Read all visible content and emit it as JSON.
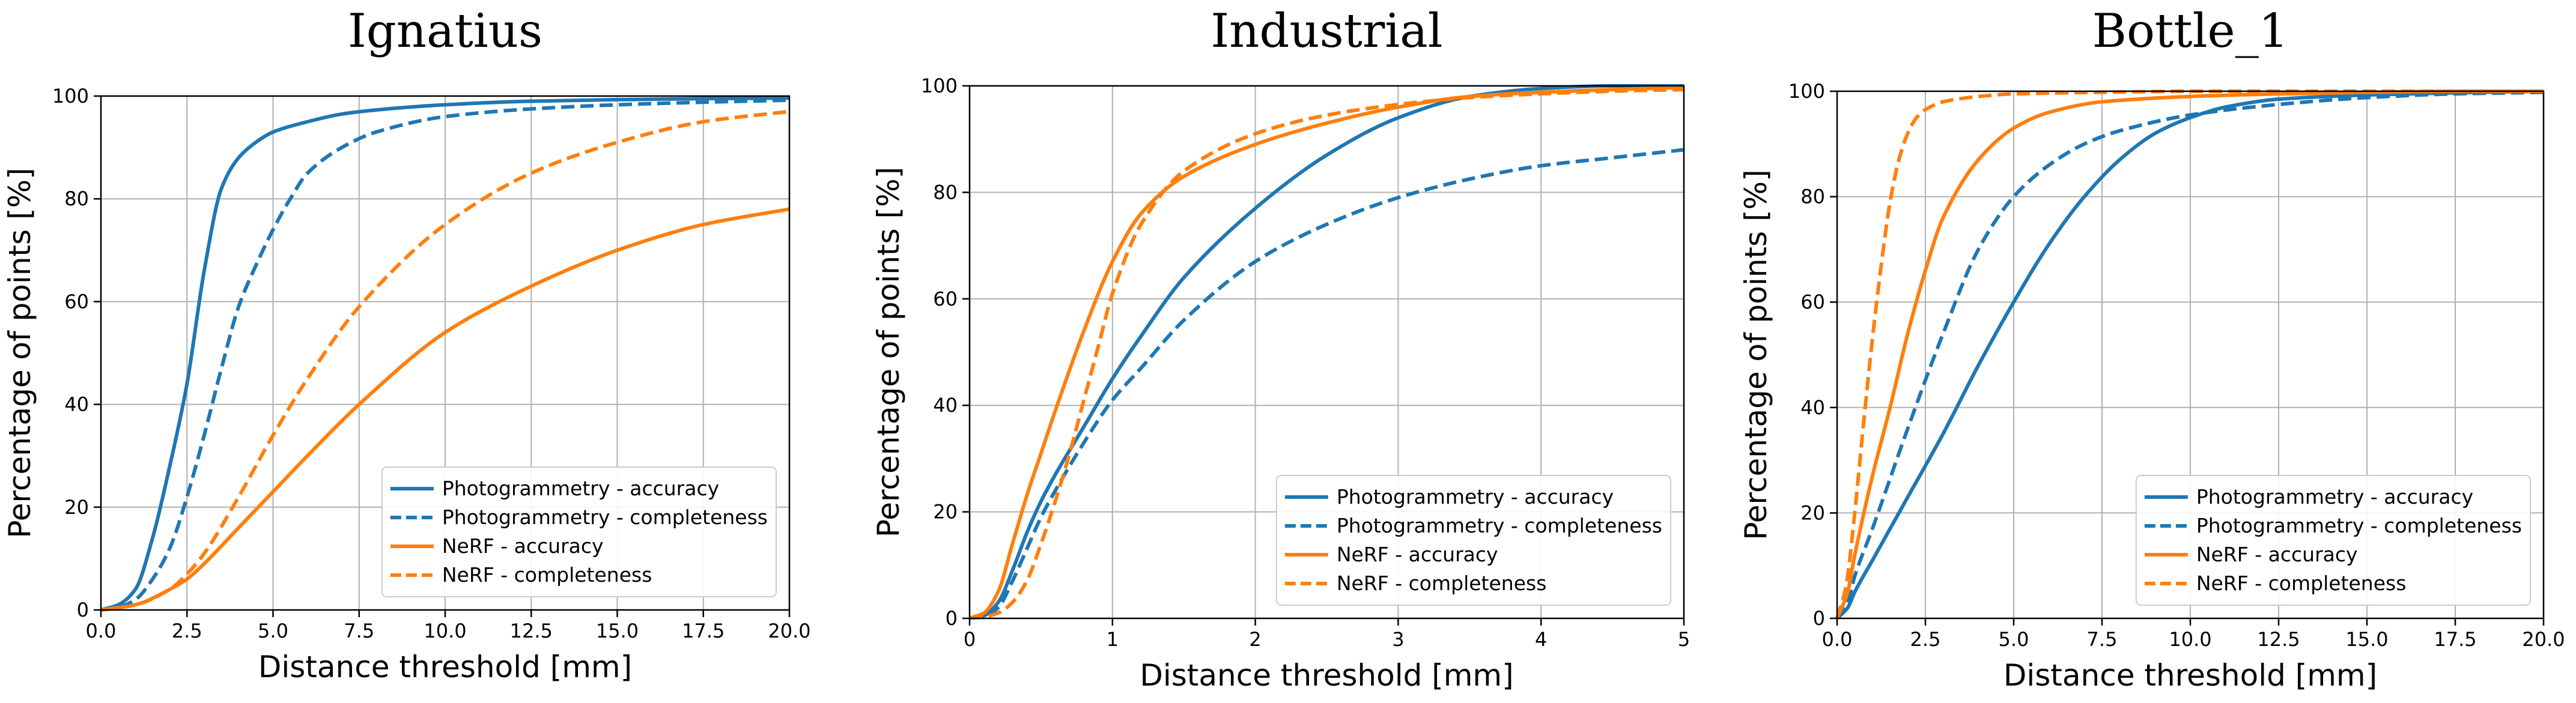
{
  "chart_data": [
    {
      "type": "line",
      "title": "Ignatius",
      "xlabel": "Distance threshold [mm]",
      "ylabel": "Percentage of points [%]",
      "xlim": [
        0,
        20
      ],
      "ylim": [
        0,
        100
      ],
      "xticks": [
        "0.0",
        "2.5",
        "5.0",
        "7.5",
        "10.0",
        "12.5",
        "15.0",
        "17.5",
        "20.0"
      ],
      "yticks": [
        "0",
        "20",
        "40",
        "60",
        "80",
        "100"
      ],
      "grid": true,
      "legend_position": "lower-right",
      "series": [
        {
          "name": "Photogrammetry - accuracy",
          "color": "#1f77b4",
          "style": "solid",
          "x": [
            0,
            0.5,
            1.0,
            1.5,
            2.0,
            2.5,
            3.0,
            3.5,
            4.0,
            4.5,
            5.0,
            6.0,
            7.0,
            8.0,
            10.0,
            12.5,
            15.0,
            17.5,
            20.0
          ],
          "y": [
            0,
            1,
            4,
            14,
            28,
            44,
            66,
            82,
            88,
            91,
            93,
            95,
            96.5,
            97.3,
            98.3,
            99,
            99.3,
            99.5,
            99.6
          ]
        },
        {
          "name": "Photogrammetry - completeness",
          "color": "#1f77b4",
          "style": "dashed",
          "x": [
            0,
            0.5,
            1.0,
            1.5,
            2.0,
            2.5,
            3.0,
            3.5,
            4.0,
            4.5,
            5.0,
            5.5,
            6.0,
            7.0,
            8.0,
            10.0,
            12.5,
            15.0,
            17.5,
            20.0
          ],
          "y": [
            0,
            0.5,
            2,
            6,
            12,
            22,
            34,
            47,
            59,
            67,
            74,
            80,
            85,
            90,
            93,
            96,
            97.5,
            98.3,
            98.8,
            99.2
          ]
        },
        {
          "name": "NeRF - accuracy",
          "color": "#ff7f0e",
          "style": "solid",
          "x": [
            0,
            1.0,
            2.0,
            2.5,
            3.0,
            4.0,
            5.0,
            6.0,
            7.5,
            10.0,
            12.5,
            15.0,
            17.5,
            20.0
          ],
          "y": [
            0,
            1,
            4,
            6,
            9,
            16,
            23,
            30,
            40,
            54,
            63,
            70,
            75,
            78
          ]
        },
        {
          "name": "NeRF - completeness",
          "color": "#ff7f0e",
          "style": "dashed",
          "x": [
            0,
            1.0,
            2.0,
            2.5,
            3.0,
            4.0,
            5.0,
            6.0,
            7.5,
            10.0,
            12.5,
            15.0,
            17.5,
            20.0
          ],
          "y": [
            0,
            1,
            4,
            7,
            11,
            22,
            34,
            45,
            59,
            75,
            85,
            91,
            95,
            97
          ]
        }
      ]
    },
    {
      "type": "line",
      "title": "Industrial",
      "xlabel": "Distance threshold [mm]",
      "ylabel": "Percentage of points [%]",
      "xlim": [
        0,
        5
      ],
      "ylim": [
        0,
        100
      ],
      "xticks": [
        "0",
        "1",
        "2",
        "3",
        "4",
        "5"
      ],
      "yticks": [
        "0",
        "20",
        "40",
        "60",
        "80",
        "100"
      ],
      "grid": true,
      "legend_position": "lower-right",
      "series": [
        {
          "name": "Photogrammetry - accuracy",
          "color": "#1f77b4",
          "style": "solid",
          "x": [
            0,
            0.1,
            0.2,
            0.3,
            0.4,
            0.5,
            0.6,
            0.8,
            1.0,
            1.2,
            1.5,
            2.0,
            2.5,
            3.0,
            3.5,
            4.0,
            4.5,
            5.0
          ],
          "y": [
            0,
            0.5,
            3,
            9,
            16,
            22,
            27,
            36,
            45,
            53,
            64,
            77,
            87,
            94,
            98,
            99.5,
            100,
            100
          ]
        },
        {
          "name": "Photogrammetry - completeness",
          "color": "#1f77b4",
          "style": "dashed",
          "x": [
            0,
            0.1,
            0.2,
            0.3,
            0.4,
            0.5,
            0.6,
            0.8,
            1.0,
            1.2,
            1.5,
            2.0,
            2.5,
            3.0,
            3.5,
            4.0,
            4.5,
            5.0
          ],
          "y": [
            0,
            0.3,
            2,
            7,
            13,
            19,
            24,
            33,
            41,
            47,
            56,
            67,
            74,
            79,
            82.5,
            85,
            86.5,
            88
          ]
        },
        {
          "name": "NeRF - accuracy",
          "color": "#ff7f0e",
          "style": "solid",
          "x": [
            0,
            0.1,
            0.2,
            0.3,
            0.4,
            0.5,
            0.6,
            0.8,
            1.0,
            1.2,
            1.5,
            2.0,
            2.5,
            3.0,
            3.5,
            4.0,
            4.5,
            5.0
          ],
          "y": [
            0,
            1,
            5,
            14,
            23,
            31,
            39,
            54,
            67,
            76,
            83,
            89,
            93,
            96,
            98,
            98.8,
            99.3,
            99.7
          ]
        },
        {
          "name": "NeRF - completeness",
          "color": "#ff7f0e",
          "style": "dashed",
          "x": [
            0,
            0.1,
            0.2,
            0.3,
            0.4,
            0.5,
            0.6,
            0.7,
            0.8,
            0.9,
            1.0,
            1.2,
            1.5,
            2.0,
            2.5,
            3.0,
            3.5,
            4.0,
            4.5,
            5.0
          ],
          "y": [
            0,
            0.3,
            1,
            3,
            7,
            14,
            22,
            31,
            41,
            51,
            61,
            74,
            84,
            91,
            94.5,
            96.5,
            97.8,
            98.5,
            99,
            99.3
          ]
        }
      ]
    },
    {
      "type": "line",
      "title": "Bottle_1",
      "xlabel": "Distance threshold [mm]",
      "ylabel": "Percentage of points [%]",
      "xlim": [
        0,
        20
      ],
      "ylim": [
        0,
        100
      ],
      "xticks": [
        "0.0",
        "2.5",
        "5.0",
        "7.5",
        "10.0",
        "12.5",
        "15.0",
        "17.5",
        "20.0"
      ],
      "yticks": [
        "0",
        "20",
        "40",
        "60",
        "80",
        "100"
      ],
      "grid": true,
      "legend_position": "lower-right",
      "series": [
        {
          "name": "Photogrammetry - accuracy",
          "color": "#1f77b4",
          "style": "solid",
          "x": [
            0,
            0.3,
            0.5,
            1.0,
            2.0,
            3.0,
            4.0,
            5.0,
            6.0,
            7.0,
            8.0,
            9.0,
            10.0,
            11.0,
            12.5,
            15.0,
            17.5,
            20.0
          ],
          "y": [
            0,
            2,
            5,
            11,
            23,
            35,
            48,
            60,
            71,
            80,
            87,
            92,
            95,
            97,
            98.5,
            99.3,
            99.7,
            100
          ]
        },
        {
          "name": "Photogrammetry - completeness",
          "color": "#1f77b4",
          "style": "dashed",
          "x": [
            0,
            0.3,
            0.5,
            1.0,
            2.0,
            3.0,
            4.0,
            5.0,
            6.0,
            7.0,
            8.0,
            10.0,
            12.5,
            15.0,
            17.5,
            20.0
          ],
          "y": [
            0,
            3,
            8,
            17,
            36,
            54,
            70,
            80,
            86,
            90,
            92.5,
            95.5,
            97.5,
            98.8,
            99.5,
            99.8
          ]
        },
        {
          "name": "NeRF - accuracy",
          "color": "#ff7f0e",
          "style": "solid",
          "x": [
            0,
            0.3,
            0.5,
            1.0,
            1.5,
            2.0,
            2.5,
            3.0,
            4.0,
            5.0,
            6.0,
            7.5,
            10.0,
            12.5,
            15.0,
            17.5,
            20.0
          ],
          "y": [
            0,
            5,
            12,
            27,
            40,
            54,
            66,
            76,
            87,
            93,
            96,
            98,
            99,
            99.5,
            99.8,
            100,
            100
          ]
        },
        {
          "name": "NeRF - completeness",
          "color": "#ff7f0e",
          "style": "dashed",
          "x": [
            0,
            0.25,
            0.5,
            0.75,
            1.0,
            1.25,
            1.5,
            1.75,
            2.0,
            2.25,
            2.5,
            3.0,
            4.0,
            5.0,
            7.5,
            10.0,
            15.0,
            20.0
          ],
          "y": [
            0,
            6,
            20,
            37,
            53,
            67,
            79,
            87,
            92,
            95,
            96.5,
            98,
            99,
            99.5,
            99.8,
            100,
            100,
            100
          ]
        }
      ]
    }
  ]
}
